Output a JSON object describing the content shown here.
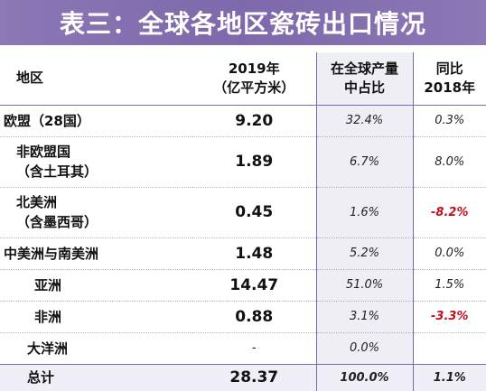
{
  "title": "表三：全球各地区瓷砖出口情况",
  "headers": {
    "region": "地区",
    "value_line1": "2019年",
    "value_line2": "（亿平方米）",
    "share_line1": "在全球产量",
    "share_line2": "中占比",
    "yoy_line1": "同比",
    "yoy_line2": "2018年"
  },
  "rows": [
    {
      "region_line1": "欧盟（28国）",
      "region_line2": "",
      "value": "9.20",
      "share": "32.4%",
      "yoy": "0.3%"
    },
    {
      "region_line1": "非欧盟国",
      "region_line2": "（含土耳其）",
      "value": "1.89",
      "share": "6.7%",
      "yoy": "8.0%"
    },
    {
      "region_line1": "北美洲",
      "region_line2": "（含墨西哥）",
      "value": "0.45",
      "share": "1.6%",
      "yoy": "-8.2%"
    },
    {
      "region_line1": "中美洲与南美洲",
      "region_line2": "",
      "value": "1.48",
      "share": "5.2%",
      "yoy": "0.0%"
    },
    {
      "region_line1": "亚洲",
      "region_line2": "",
      "value": "14.47",
      "share": "51.0%",
      "yoy": "1.5%"
    },
    {
      "region_line1": "非洲",
      "region_line2": "",
      "value": "0.88",
      "share": "3.1%",
      "yoy": "-3.3%"
    },
    {
      "region_line1": "大洋洲",
      "region_line2": "",
      "value": "-",
      "share": "0.0%",
      "yoy": ""
    }
  ],
  "total": {
    "label": "总计",
    "value": "28.37",
    "share": "100.0%",
    "yoy": "1.1%"
  },
  "colors": {
    "banner": "#8073b0",
    "negative": "#c0101e",
    "shade": "#efeef5"
  }
}
